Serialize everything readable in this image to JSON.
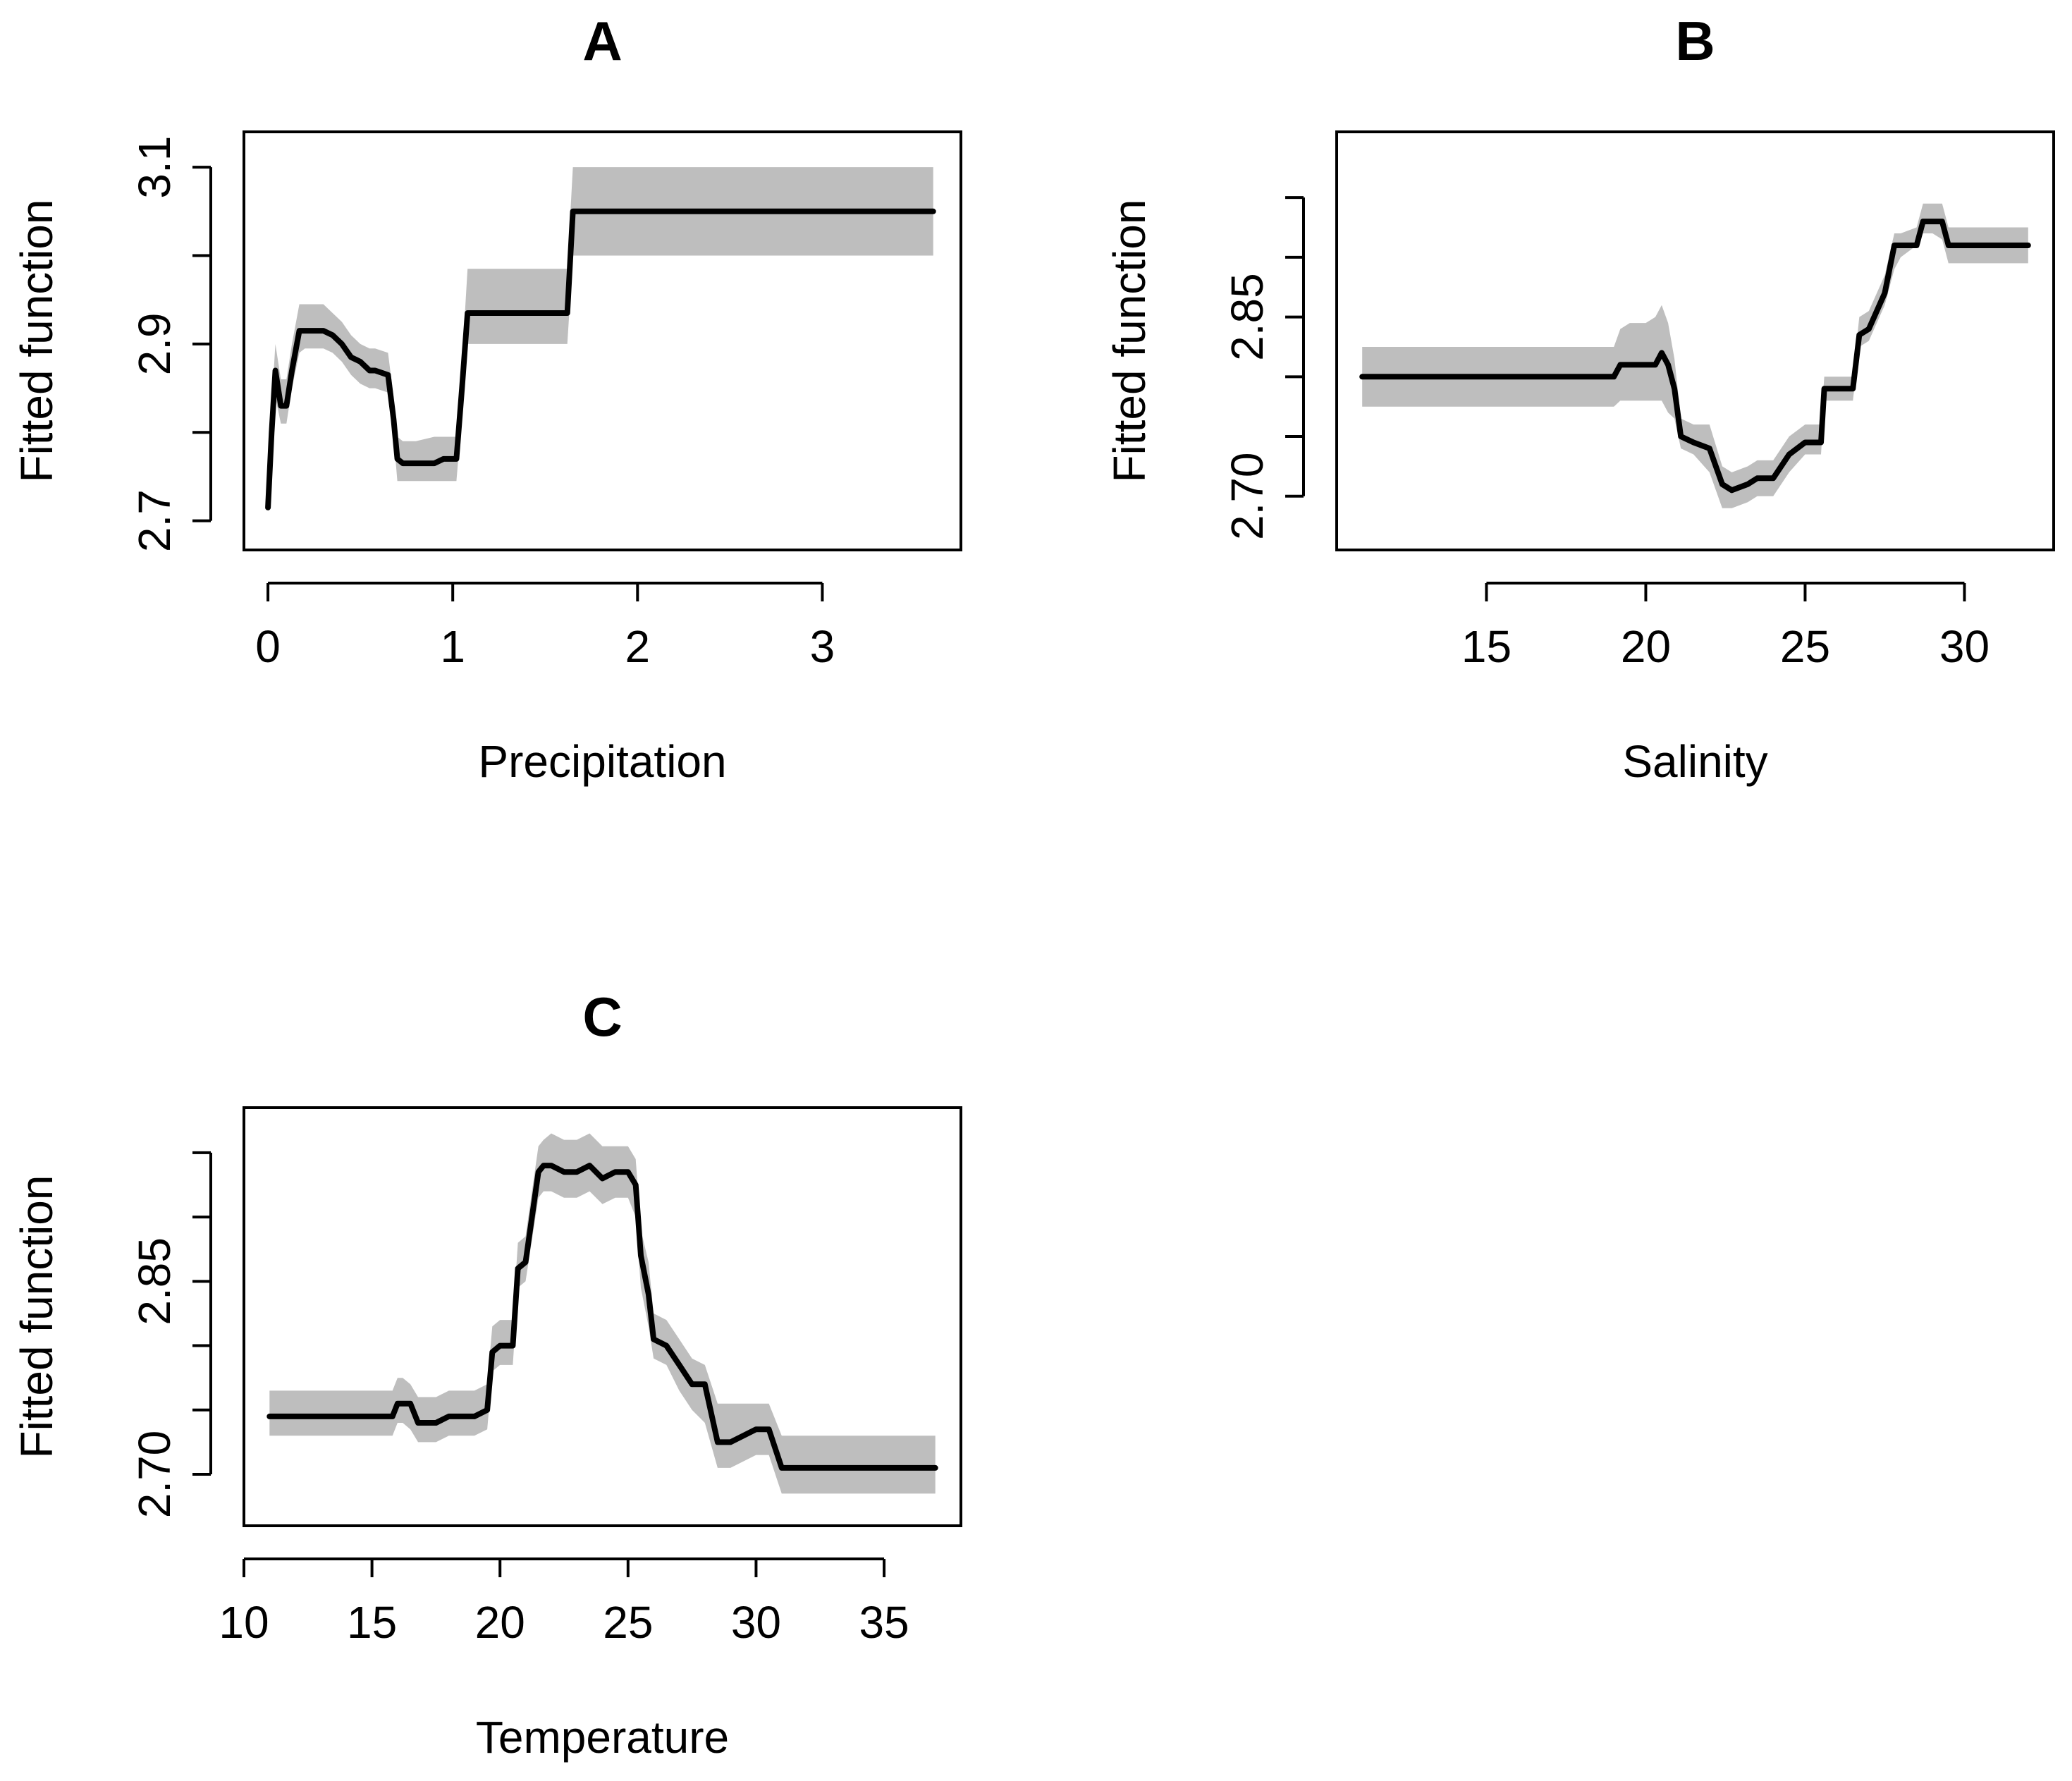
{
  "colors": {
    "line": "#000000",
    "band": "#bebebe",
    "background": "#ffffff"
  },
  "chart_data": [
    {
      "type": "line",
      "title": "A",
      "xlabel": "Precipitation",
      "ylabel": "Fitted function",
      "xlim": [
        -0.13,
        3.75
      ],
      "ylim": [
        2.667,
        3.14
      ],
      "xticks": [
        0,
        1,
        2,
        3
      ],
      "xtick_labels": [
        "0",
        "1",
        "2",
        "3"
      ],
      "yticks": [
        2.7,
        2.8,
        2.9,
        3.0,
        3.1
      ],
      "ytick_labels": [
        "2.7",
        "",
        "2.9",
        "",
        "3.1"
      ],
      "grid": false,
      "legend": "none",
      "series": [
        {
          "x": [
            0.0,
            0.02,
            0.04,
            0.07,
            0.1,
            0.13,
            0.17,
            0.2,
            0.25,
            0.3,
            0.35,
            0.4,
            0.45,
            0.5,
            0.55,
            0.58,
            0.65,
            0.68,
            0.7,
            0.73,
            0.8,
            0.9,
            0.95,
            1.02,
            1.05,
            1.08,
            1.2,
            1.4,
            1.6,
            1.62,
            1.65,
            1.7,
            2.0,
            3.0,
            3.6
          ],
          "y": [
            2.715,
            2.8,
            2.87,
            2.83,
            2.83,
            2.87,
            2.915,
            2.915,
            2.915,
            2.915,
            2.91,
            2.9,
            2.885,
            2.88,
            2.87,
            2.87,
            2.865,
            2.815,
            2.77,
            2.765,
            2.765,
            2.765,
            2.77,
            2.77,
            2.85,
            2.935,
            2.935,
            2.935,
            2.935,
            2.935,
            3.05,
            3.05,
            3.05,
            3.05,
            3.05
          ],
          "lower": [
            2.71,
            2.77,
            2.84,
            2.81,
            2.81,
            2.85,
            2.89,
            2.895,
            2.895,
            2.895,
            2.89,
            2.88,
            2.865,
            2.855,
            2.85,
            2.85,
            2.845,
            2.795,
            2.745,
            2.745,
            2.745,
            2.745,
            2.745,
            2.745,
            2.82,
            2.9,
            2.9,
            2.9,
            2.9,
            2.9,
            3.0,
            3.0,
            3.0,
            3.0,
            3.0
          ],
          "upper": [
            2.72,
            2.83,
            2.9,
            2.86,
            2.86,
            2.9,
            2.945,
            2.945,
            2.945,
            2.945,
            2.935,
            2.925,
            2.91,
            2.9,
            2.895,
            2.895,
            2.89,
            2.84,
            2.795,
            2.79,
            2.79,
            2.795,
            2.795,
            2.795,
            2.88,
            2.985,
            2.985,
            2.985,
            2.985,
            2.985,
            3.1,
            3.1,
            3.1,
            3.1,
            3.1
          ]
        }
      ]
    },
    {
      "type": "line",
      "title": "B",
      "xlabel": "Salinity",
      "ylabel": "Fitted function",
      "xlim": [
        10.3,
        32.8
      ],
      "ylim": [
        2.655,
        3.005
      ],
      "xticks": [
        15,
        20,
        25,
        30
      ],
      "xtick_labels": [
        "15",
        "20",
        "25",
        "30"
      ],
      "yticks": [
        2.7,
        2.75,
        2.8,
        2.85,
        2.9,
        2.95
      ],
      "ytick_labels": [
        "2.70",
        "",
        "",
        "2.85",
        "",
        ""
      ],
      "grid": false,
      "legend": "none",
      "series": [
        {
          "x": [
            11.1,
            15.0,
            19.0,
            19.2,
            19.5,
            20.0,
            20.3,
            20.5,
            20.7,
            20.9,
            21.1,
            21.5,
            22.0,
            22.4,
            22.7,
            23.2,
            23.5,
            24.0,
            24.5,
            25.0,
            25.3,
            25.5,
            25.6,
            26.0,
            26.5,
            26.7,
            27.0,
            27.5,
            27.8,
            28.0,
            28.5,
            28.7,
            29.0,
            29.3,
            29.5,
            30.0,
            31.0,
            32.0
          ],
          "y": [
            2.8,
            2.8,
            2.8,
            2.81,
            2.81,
            2.81,
            2.81,
            2.82,
            2.81,
            2.79,
            2.75,
            2.745,
            2.74,
            2.71,
            2.705,
            2.71,
            2.715,
            2.715,
            2.735,
            2.745,
            2.745,
            2.745,
            2.79,
            2.79,
            2.79,
            2.835,
            2.84,
            2.87,
            2.91,
            2.91,
            2.91,
            2.93,
            2.93,
            2.93,
            2.91,
            2.91,
            2.91,
            2.91
          ],
          "lower": [
            2.775,
            2.775,
            2.775,
            2.78,
            2.78,
            2.78,
            2.78,
            2.78,
            2.77,
            2.765,
            2.74,
            2.735,
            2.72,
            2.69,
            2.69,
            2.695,
            2.7,
            2.7,
            2.72,
            2.735,
            2.735,
            2.735,
            2.78,
            2.78,
            2.78,
            2.825,
            2.83,
            2.86,
            2.89,
            2.9,
            2.91,
            2.92,
            2.92,
            2.915,
            2.895,
            2.895,
            2.895,
            2.895
          ],
          "upper": [
            2.825,
            2.825,
            2.825,
            2.84,
            2.845,
            2.845,
            2.85,
            2.86,
            2.845,
            2.815,
            2.765,
            2.76,
            2.76,
            2.725,
            2.72,
            2.725,
            2.73,
            2.73,
            2.75,
            2.76,
            2.76,
            2.76,
            2.8,
            2.8,
            2.8,
            2.85,
            2.855,
            2.885,
            2.92,
            2.92,
            2.925,
            2.945,
            2.945,
            2.945,
            2.925,
            2.925,
            2.925,
            2.925
          ]
        }
      ]
    },
    {
      "type": "line",
      "title": "C",
      "xlabel": "Temperature",
      "ylabel": "Fitted function",
      "xlim": [
        10.0,
        38.0
      ],
      "ylim": [
        2.66,
        2.985
      ],
      "xticks": [
        10,
        15,
        20,
        25,
        30,
        35
      ],
      "xtick_labels": [
        "10",
        "15",
        "20",
        "25",
        "30",
        "35"
      ],
      "yticks": [
        2.7,
        2.75,
        2.8,
        2.85,
        2.9,
        2.95
      ],
      "ytick_labels": [
        "2.70",
        "",
        "",
        "2.85",
        "",
        ""
      ],
      "grid": false,
      "legend": "none",
      "series": [
        {
          "x": [
            11.0,
            14.0,
            15.8,
            16.0,
            16.2,
            16.5,
            16.8,
            17.5,
            18.0,
            18.5,
            19.0,
            19.5,
            19.7,
            20.0,
            20.5,
            20.7,
            21.0,
            21.5,
            21.7,
            22.0,
            22.5,
            23.0,
            23.5,
            24.0,
            24.5,
            25.0,
            25.3,
            25.5,
            25.8,
            26.0,
            26.5,
            27.0,
            27.5,
            28.0,
            28.5,
            29.0,
            29.5,
            30.0,
            30.5,
            31.0,
            31.7,
            32.0,
            35.0,
            37.0
          ],
          "y": [
            2.745,
            2.745,
            2.745,
            2.755,
            2.755,
            2.755,
            2.74,
            2.74,
            2.745,
            2.745,
            2.745,
            2.75,
            2.795,
            2.8,
            2.8,
            2.86,
            2.865,
            2.935,
            2.94,
            2.94,
            2.935,
            2.935,
            2.94,
            2.93,
            2.935,
            2.935,
            2.925,
            2.87,
            2.84,
            2.805,
            2.8,
            2.785,
            2.77,
            2.77,
            2.725,
            2.725,
            2.73,
            2.735,
            2.735,
            2.705,
            2.705,
            2.705,
            2.705,
            2.705
          ],
          "lower": [
            2.73,
            2.73,
            2.73,
            2.74,
            2.74,
            2.735,
            2.725,
            2.725,
            2.73,
            2.73,
            2.73,
            2.735,
            2.78,
            2.785,
            2.785,
            2.845,
            2.85,
            2.915,
            2.92,
            2.92,
            2.915,
            2.915,
            2.92,
            2.91,
            2.915,
            2.915,
            2.9,
            2.845,
            2.815,
            2.79,
            2.785,
            2.765,
            2.75,
            2.74,
            2.705,
            2.705,
            2.71,
            2.715,
            2.715,
            2.685,
            2.685,
            2.685,
            2.685,
            2.685
          ],
          "upper": [
            2.765,
            2.765,
            2.765,
            2.775,
            2.775,
            2.77,
            2.76,
            2.76,
            2.765,
            2.765,
            2.765,
            2.77,
            2.815,
            2.82,
            2.82,
            2.88,
            2.885,
            2.955,
            2.96,
            2.965,
            2.96,
            2.96,
            2.965,
            2.955,
            2.955,
            2.955,
            2.945,
            2.89,
            2.865,
            2.825,
            2.82,
            2.805,
            2.79,
            2.785,
            2.755,
            2.755,
            2.755,
            2.755,
            2.755,
            2.73,
            2.73,
            2.73,
            2.73,
            2.73
          ]
        }
      ]
    }
  ]
}
